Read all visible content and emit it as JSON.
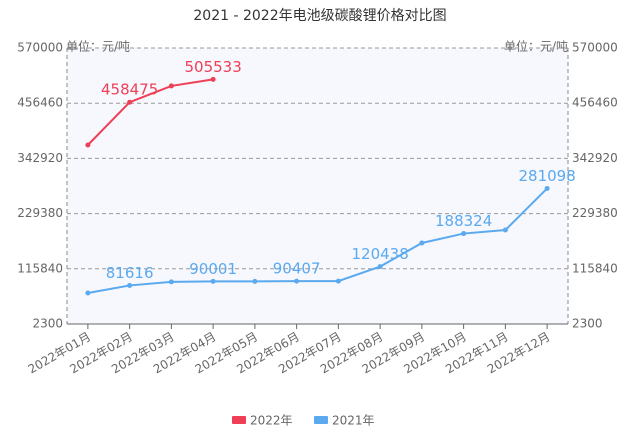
{
  "chart_data": {
    "type": "line",
    "title": "2021 - 2022年电池级碳酸锂价格对比图",
    "y_axis_label": "单位：元/吨",
    "categories": [
      "2022年01月",
      "2022年02月",
      "2022年03月",
      "2022年04月",
      "2022年05月",
      "2022年06月",
      "2022年07月",
      "2022年08月",
      "2022年09月",
      "2022年10月",
      "2022年11月",
      "2022年12月"
    ],
    "series": [
      {
        "name": "2022年",
        "color": "#ee3f56",
        "values": [
          370500,
          458475,
          492000,
          505533,
          null,
          null,
          null,
          null,
          null,
          null,
          null,
          null
        ]
      },
      {
        "name": "2021年",
        "color": "#5ba9ee",
        "values": [
          66000,
          81616,
          89000,
          90001,
          90000,
          90407,
          90500,
          120438,
          168900,
          188324,
          195600,
          281098
        ]
      }
    ],
    "ylim": [
      2300,
      570000
    ],
    "yticks": [
      2300,
      115840,
      229380,
      342920,
      456460,
      570000
    ],
    "grid": true,
    "legend": "bottom"
  }
}
